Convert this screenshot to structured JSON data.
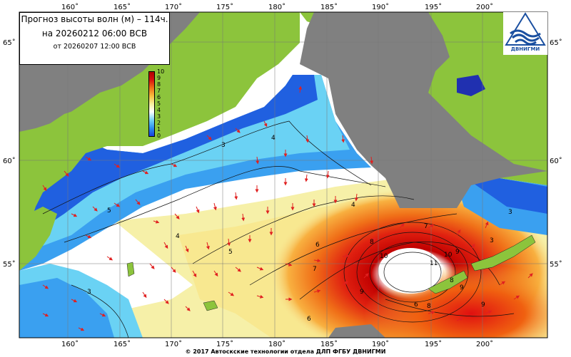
{
  "title": {
    "line1": "Прогноз высоты волн (м) – 114ч.",
    "line2": "на 20260212 06:00 ВСВ",
    "line3": "от 20260207 12:00 ВСВ"
  },
  "logo": {
    "text": "ДВНИГМИ"
  },
  "scale": {
    "labels": [
      "10",
      "9",
      "8",
      "7",
      "6",
      "5",
      "4",
      "3",
      "2",
      "1",
      "0"
    ],
    "colors": {
      "low": "#1b3fe0",
      "mid_low": "#6ccff5",
      "mid": "#ffffff",
      "mid_high": "#f8c040",
      "high": "#d81010"
    }
  },
  "axes": {
    "longitude_top": [
      "160˚",
      "165˚",
      "170˚",
      "175˚",
      "180˚",
      "185˚",
      "190˚",
      "195˚",
      "200˚"
    ],
    "longitude_bottom": [
      "160˚",
      "165˚",
      "170˚",
      "175˚",
      "180˚",
      "185˚",
      "190˚",
      "195˚",
      "200˚"
    ],
    "latitude_left": [
      "65˚",
      "60˚",
      "55˚"
    ],
    "latitude_right": [
      "65˚",
      "60˚",
      "55˚"
    ]
  },
  "contour_labels": [
    "3",
    "4",
    "5",
    "3",
    "4",
    "5",
    "6",
    "7",
    "8",
    "9",
    "10",
    "11",
    "10",
    "9",
    "8",
    "7",
    "6",
    "8",
    "9",
    "9",
    "4",
    "3",
    "3",
    "6"
  ],
  "copyright": "© 2017 Автоскские технологии отдела ДЛП ФГБУ ДВНИГМИ"
}
